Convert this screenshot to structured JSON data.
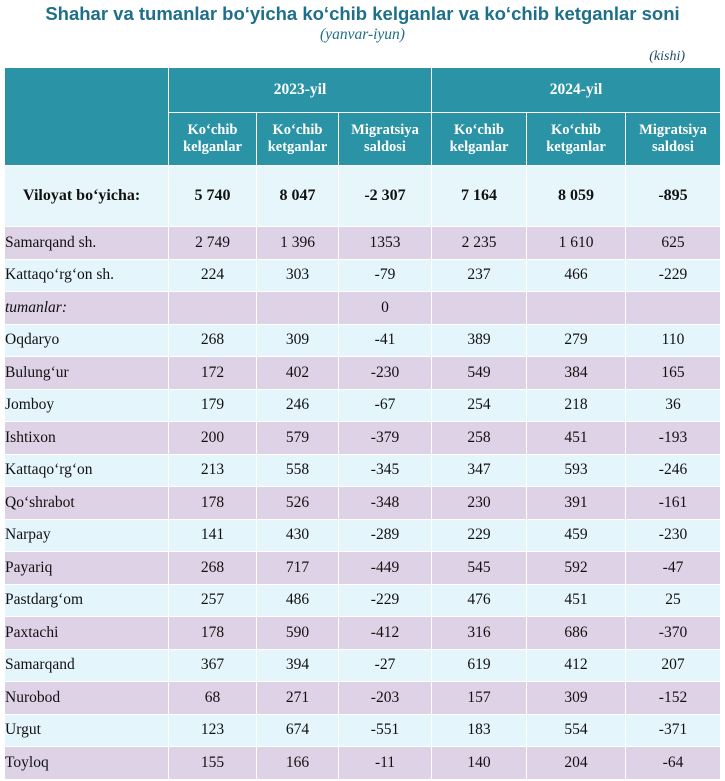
{
  "title": "Shahar va tumanlar bo‘yicha ko‘chib kelganlar va ko‘chib ketganlar soni",
  "subtitle": "(yanvar-iyun)",
  "unit": "(kishi)",
  "years": [
    "2023-yil",
    "2024-yil"
  ],
  "columns": [
    [
      "Ko‘chib",
      "kelganlar"
    ],
    [
      "Ko‘chib",
      "ketganlar"
    ],
    [
      "Migratsiya",
      "saldosi"
    ],
    [
      "Ko‘chib",
      "kelganlar"
    ],
    [
      "Ko‘chib",
      "ketganlar"
    ],
    [
      "Migratsiya",
      "saldosi"
    ]
  ],
  "total": {
    "label": "Viloyat bo‘yicha:",
    "values": [
      "5 740",
      "8 047",
      "-2 307",
      "7 164",
      "8 059",
      "-895"
    ]
  },
  "rows": [
    {
      "label": "Samarqand sh.",
      "values": [
        "2 749",
        "1 396",
        "1353",
        "2 235",
        "1 610",
        "625"
      ]
    },
    {
      "label": "Kattaqo‘rg‘on sh.",
      "values": [
        "224",
        "303",
        "-79",
        "237",
        "466",
        "-229"
      ]
    },
    {
      "label": "tumanlar:",
      "italic": true,
      "values": [
        "",
        "",
        "0",
        "",
        "",
        ""
      ]
    },
    {
      "label": "Oqdaryo",
      "values": [
        "268",
        "309",
        "-41",
        "389",
        "279",
        "110"
      ]
    },
    {
      "label": "Bulung‘ur",
      "values": [
        "172",
        "402",
        "-230",
        "549",
        "384",
        "165"
      ]
    },
    {
      "label": "Jomboy",
      "values": [
        "179",
        "246",
        "-67",
        "254",
        "218",
        "36"
      ]
    },
    {
      "label": "Ishtixon",
      "values": [
        "200",
        "579",
        "-379",
        "258",
        "451",
        "-193"
      ]
    },
    {
      "label": "Kattaqo‘rg‘on",
      "values": [
        "213",
        "558",
        "-345",
        "347",
        "593",
        "-246"
      ]
    },
    {
      "label": "Qo‘shrabot",
      "values": [
        "178",
        "526",
        "-348",
        "230",
        "391",
        "-161"
      ]
    },
    {
      "label": "Narpay",
      "values": [
        "141",
        "430",
        "-289",
        "229",
        "459",
        "-230"
      ]
    },
    {
      "label": "Payariq",
      "values": [
        "268",
        "717",
        "-449",
        "545",
        "592",
        "-47"
      ]
    },
    {
      "label": "Pastdarg‘om",
      "values": [
        "257",
        "486",
        "-229",
        "476",
        "451",
        "25"
      ]
    },
    {
      "label": "Paxtachi",
      "values": [
        "178",
        "590",
        "-412",
        "316",
        "686",
        "-370"
      ]
    },
    {
      "label": "Samarqand",
      "values": [
        "367",
        "394",
        "-27",
        "619",
        "412",
        "207"
      ]
    },
    {
      "label": "Nurobod",
      "values": [
        "68",
        "271",
        "-203",
        "157",
        "309",
        "-152"
      ]
    },
    {
      "label": "Urgut",
      "values": [
        "123",
        "674",
        "-551",
        "183",
        "554",
        "-371"
      ]
    },
    {
      "label": "Toyloq",
      "values": [
        "155",
        "166",
        "-11",
        "140",
        "204",
        "-64"
      ]
    }
  ],
  "colors": {
    "header": "#2a93a6",
    "title": "#1f6f8b",
    "row_odd": "#ded2e6",
    "row_even": "#e4f5fb"
  }
}
